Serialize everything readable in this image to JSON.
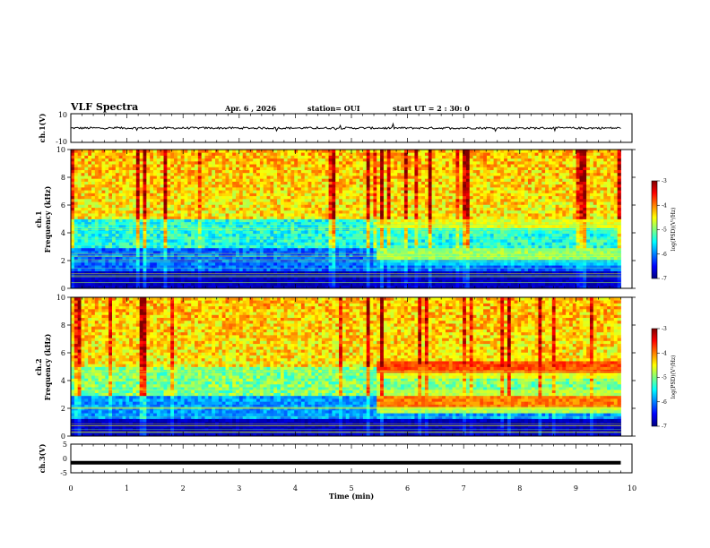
{
  "header": {
    "title": "VLF Spectra",
    "date": "Apr. 6 , 2026",
    "station": "station= OUI",
    "start": "start UT = 2 : 30: 0"
  },
  "chart_data": [
    {
      "name": "ch1-waveform",
      "type": "line",
      "ylabel": "ch.1(V)",
      "ylim": [
        -10,
        10
      ],
      "yticks": [
        "10",
        "-10"
      ],
      "xlim": [
        0,
        10
      ],
      "description_signal": "noise around approx. 0 V"
    },
    {
      "name": "ch1-spectrogram",
      "type": "heatmap",
      "ylabel": [
        "ch.1",
        "Frequency (kHz)"
      ],
      "ylim": [
        0,
        10
      ],
      "yticks": [
        "0",
        "2",
        "4",
        "6",
        "8",
        "10"
      ],
      "xlim": [
        0,
        10
      ],
      "colorbar": {
        "label": "log(PSD)(V²/Hz)",
        "min": -7,
        "max": -3,
        "ticks": [
          "-3",
          "-4",
          "-5",
          "-6",
          "-7"
        ]
      },
      "bands": [
        {
          "from_min": 5.4,
          "to_min": 9.8,
          "freq_khz": 4.7,
          "level": -4.6
        },
        {
          "from_min": 5.4,
          "to_min": 9.8,
          "freq_khz": 2.5,
          "level": -4.9
        }
      ]
    },
    {
      "name": "ch2-spectrogram",
      "type": "heatmap",
      "ylabel": [
        "ch.2",
        "Frequency (kHz)"
      ],
      "ylim": [
        0,
        10
      ],
      "yticks": [
        "0",
        "2",
        "4",
        "6",
        "8",
        "10"
      ],
      "xlim": [
        0,
        10
      ],
      "colorbar": {
        "label": "log(PSD)(V²/Hz)",
        "min": -7,
        "max": -3,
        "ticks": [
          "-3",
          "-4",
          "-5",
          "-6",
          "-7"
        ]
      },
      "bands": [
        {
          "from_min": 5.4,
          "to_min": 9.8,
          "freq_khz": 5.0,
          "level": -3.8
        },
        {
          "from_min": 5.4,
          "to_min": 9.8,
          "freq_khz": 2.5,
          "level": -4.0
        }
      ]
    },
    {
      "name": "ch3-waveform",
      "type": "line",
      "ylabel": "ch.3(V)",
      "ylim": [
        -5,
        5
      ],
      "yticks": [
        "5",
        "0",
        "-5"
      ],
      "xlim": [
        0,
        10
      ],
      "constant_value": -1.5
    }
  ],
  "xaxis": {
    "label": "Time (min)",
    "ticks": [
      "0",
      "1",
      "2",
      "3",
      "4",
      "5",
      "6",
      "7",
      "8",
      "9",
      "10"
    ],
    "data_end_min": 9.8
  },
  "colors": {
    "jet": [
      "#00007f",
      "#0000ff",
      "#007fff",
      "#00ffff",
      "#7fff7f",
      "#ffff00",
      "#ff7f00",
      "#ff0000",
      "#7f0000"
    ]
  }
}
